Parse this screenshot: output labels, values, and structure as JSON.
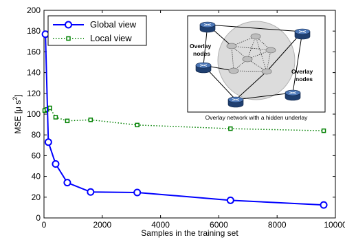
{
  "chart_data": {
    "type": "line",
    "xlabel": "Samples in the training set",
    "ylabel_main": "MSE [μ s",
    "ylabel_sup": "2",
    "ylabel_close": "]",
    "xlim": [
      0,
      10000
    ],
    "ylim": [
      0,
      200
    ],
    "xticks": [
      0,
      2000,
      4000,
      6000,
      8000,
      10000
    ],
    "yticks": [
      0,
      20,
      40,
      60,
      80,
      100,
      120,
      140,
      160,
      180,
      200
    ],
    "grid": false,
    "legend_position": "top-left",
    "series": [
      {
        "name": "Global view",
        "color": "#0000ff",
        "style": "solid",
        "marker": "circle",
        "x": [
          50,
          150,
          400,
          800,
          1600,
          3200,
          6400,
          9600
        ],
        "y": [
          177,
          73,
          52,
          34,
          25,
          24.5,
          17,
          12.5
        ]
      },
      {
        "name": "Local view",
        "color": "#008000",
        "style": "dotted",
        "marker": "square",
        "x": [
          25,
          100,
          200,
          400,
          800,
          1600,
          3200,
          6400,
          9600
        ],
        "y": [
          103.5,
          104.5,
          106,
          97,
          93.5,
          94.5,
          89.5,
          86,
          84
        ]
      }
    ],
    "inset": {
      "caption": "Overlay network with a hidden underlay",
      "label_left_1": "Overlay",
      "label_left_2": "nodes",
      "label_right_1": "Overlay",
      "label_right_2": "nodes"
    }
  }
}
